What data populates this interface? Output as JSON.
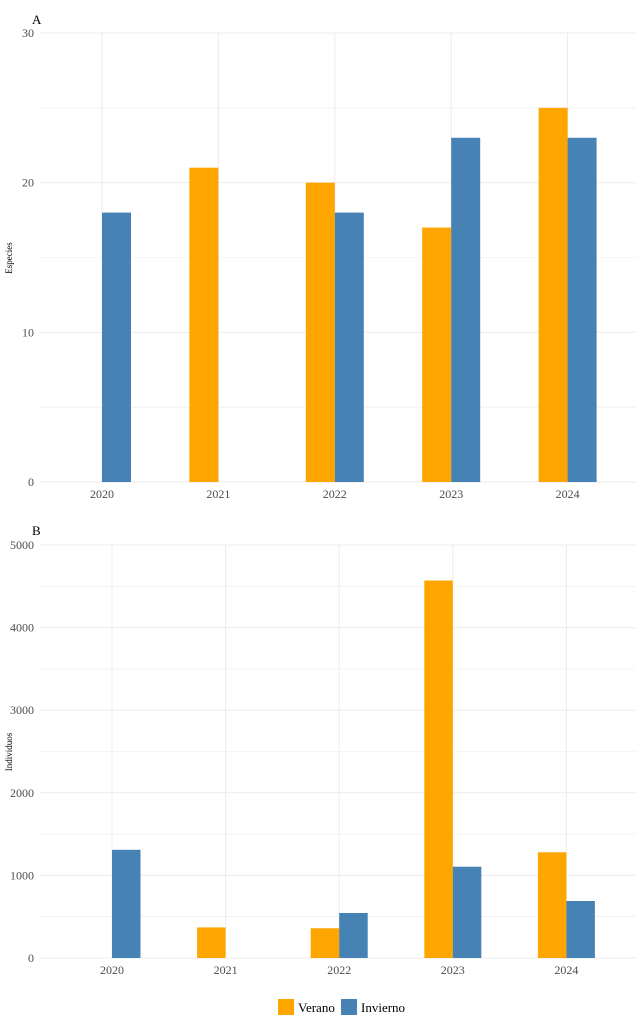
{
  "colors": {
    "verano": "#FFA500",
    "invierno": "#4682B4",
    "grid": "#ebebeb"
  },
  "legend": [
    "Verano",
    "Invierno"
  ],
  "chart_data": [
    {
      "type": "bar",
      "panel": "A",
      "ylabel": "Especies",
      "categories": [
        "2020",
        "2021",
        "2022",
        "2023",
        "2024"
      ],
      "series": [
        {
          "name": "Verano",
          "values": [
            null,
            21,
            20,
            17,
            25
          ]
        },
        {
          "name": "Invierno",
          "values": [
            18,
            null,
            18,
            23,
            23
          ]
        }
      ],
      "ylim": [
        0,
        30
      ],
      "yticks": [
        "0",
        "10",
        "20",
        "30"
      ],
      "grid": true,
      "legend": "bottom"
    },
    {
      "type": "bar",
      "panel": "B",
      "ylabel": "Individuos",
      "categories": [
        "2020",
        "2021",
        "2022",
        "2023",
        "2024"
      ],
      "series": [
        {
          "name": "Verano",
          "values": [
            null,
            370,
            360,
            4570,
            1280
          ]
        },
        {
          "name": "Invierno",
          "values": [
            1310,
            null,
            545,
            1105,
            690
          ]
        }
      ],
      "ylim": [
        0,
        5000
      ],
      "yticks": [
        "0",
        "1000",
        "2000",
        "3000",
        "4000",
        "5000"
      ],
      "grid": true,
      "legend": "bottom"
    }
  ]
}
